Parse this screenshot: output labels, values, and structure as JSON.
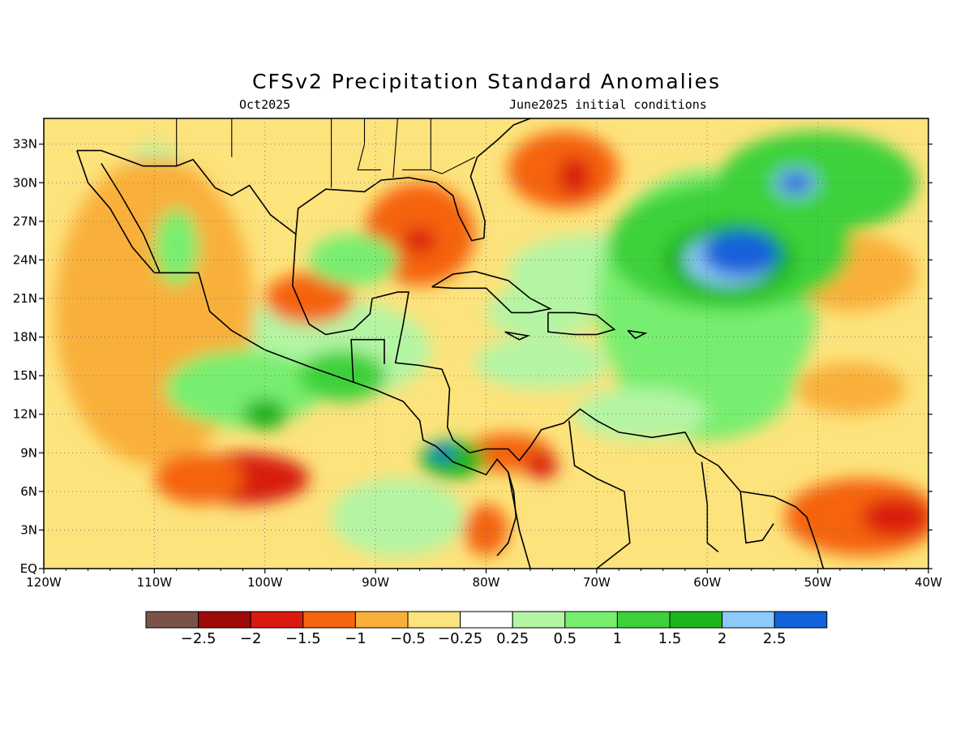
{
  "title": "CFSv2 Precipitation Standard Anomalies",
  "subtitle_left": "Oct2025",
  "subtitle_right": "June2025 initial conditions",
  "lon_ticks": [
    "120W",
    "110W",
    "100W",
    "90W",
    "80W",
    "70W",
    "60W",
    "50W",
    "40W"
  ],
  "lat_ticks": [
    "EQ",
    "3N",
    "6N",
    "9N",
    "12N",
    "15N",
    "18N",
    "21N",
    "24N",
    "27N",
    "30N",
    "33N"
  ],
  "map_extent": {
    "lon_min": -120,
    "lon_max": -40,
    "lat_min": 0,
    "lat_max": 35
  },
  "legend": {
    "colors": [
      "#7a5248",
      "#9e0a0a",
      "#d81a10",
      "#f5640f",
      "#f9b03a",
      "#fde37c",
      "#ffffff",
      "#b4f5a4",
      "#78ee6f",
      "#3cd13a",
      "#1eb41e",
      "#8ccafa",
      "#1262d9"
    ],
    "labels": [
      "-2.5",
      "-2",
      "-1.5",
      "-1",
      "-0.5",
      "-0.25",
      "0.25",
      "0.5",
      "1",
      "1.5",
      "2",
      "2.5"
    ]
  },
  "anomaly_features": [
    {
      "lon": -110,
      "lat": 20,
      "rx": 9,
      "ry": 12,
      "level": -0.5
    },
    {
      "lon": -102,
      "lat": 7,
      "rx": 6,
      "ry": 2,
      "level": -1.5
    },
    {
      "lon": -106,
      "lat": 7,
      "rx": 4,
      "ry": 2,
      "level": -1
    },
    {
      "lon": -86,
      "lat": 26,
      "rx": 5,
      "ry": 4,
      "level": -1
    },
    {
      "lon": -86,
      "lat": 25.5,
      "rx": 1.5,
      "ry": 1,
      "level": -1.5
    },
    {
      "lon": -73,
      "lat": 31,
      "rx": 5,
      "ry": 3,
      "level": -1
    },
    {
      "lon": -72,
      "lat": 30.5,
      "rx": 1.5,
      "ry": 1.5,
      "level": -1.5
    },
    {
      "lon": -96,
      "lat": 21,
      "rx": 4,
      "ry": 2,
      "level": -1
    },
    {
      "lon": -78,
      "lat": 9,
      "rx": 4,
      "ry": 1.5,
      "level": -1
    },
    {
      "lon": -75,
      "lat": 8,
      "rx": 1.5,
      "ry": 1,
      "level": -1.5
    },
    {
      "lon": -80,
      "lat": 3,
      "rx": 2,
      "ry": 2,
      "level": -1
    },
    {
      "lon": -46,
      "lat": 4,
      "rx": 7,
      "ry": 3,
      "level": -1
    },
    {
      "lon": -43,
      "lat": 4,
      "rx": 3,
      "ry": 1.5,
      "level": -1.5
    },
    {
      "lon": -47,
      "lat": 14,
      "rx": 5,
      "ry": 2,
      "level": -0.5
    },
    {
      "lon": -47,
      "lat": 23,
      "rx": 6,
      "ry": 3,
      "level": -0.5
    },
    {
      "lon": -58,
      "lat": 25,
      "rx": 11,
      "ry": 5,
      "level": 1
    },
    {
      "lon": -50,
      "lat": 30,
      "rx": 9,
      "ry": 4,
      "level": 1
    },
    {
      "lon": -58,
      "lat": 24,
      "rx": 6,
      "ry": 3,
      "level": 1.5
    },
    {
      "lon": -58,
      "lat": 24,
      "rx": 4,
      "ry": 2,
      "level": 2
    },
    {
      "lon": -57,
      "lat": 24.5,
      "rx": 3.5,
      "ry": 1.8,
      "level": 2.5
    },
    {
      "lon": -52,
      "lat": 30,
      "rx": 2,
      "ry": 1.2,
      "level": 2
    },
    {
      "lon": -52,
      "lat": 30,
      "rx": 1.5,
      "ry": 0.8,
      "level": 2.5
    },
    {
      "lon": -60,
      "lat": 15,
      "rx": 8,
      "ry": 5,
      "level": 0.5
    },
    {
      "lon": -102,
      "lat": 14,
      "rx": 7,
      "ry": 3,
      "level": 0.5
    },
    {
      "lon": -100,
      "lat": 12,
      "rx": 2,
      "ry": 1.2,
      "level": 1.5
    },
    {
      "lon": -93,
      "lat": 15,
      "rx": 4,
      "ry": 2,
      "level": 1
    },
    {
      "lon": -83,
      "lat": 8.5,
      "rx": 3,
      "ry": 1.5,
      "level": 1.5
    },
    {
      "lon": -84,
      "lat": 9,
      "rx": 1,
      "ry": 0.6,
      "level": 2.5
    },
    {
      "lon": -92,
      "lat": 24,
      "rx": 4,
      "ry": 2,
      "level": 0.5
    },
    {
      "lon": -108,
      "lat": 25,
      "rx": 2,
      "ry": 3,
      "level": 0.5
    },
    {
      "lon": -75,
      "lat": 20,
      "rx": 5,
      "ry": 2,
      "level": 0.25
    },
    {
      "lon": -66,
      "lat": 12,
      "rx": 6,
      "ry": 2,
      "level": 0.25
    },
    {
      "lon": -75,
      "lat": 16,
      "rx": 6,
      "ry": 2,
      "level": 0.25
    }
  ]
}
